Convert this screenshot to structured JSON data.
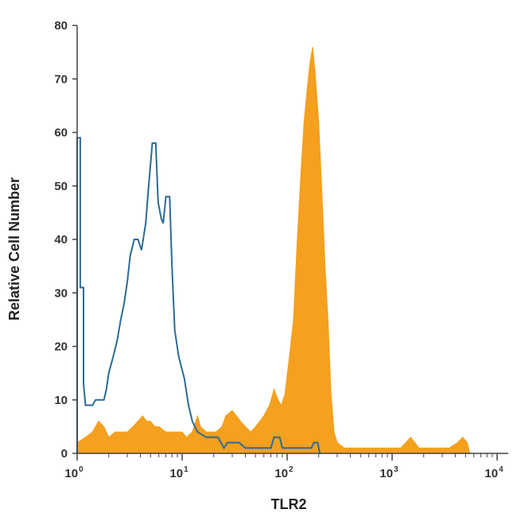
{
  "chart_data": {
    "type": "area",
    "xlabel": "TLR2",
    "ylabel": "Relative Cell Number",
    "x_scale": "log",
    "xlim": [
      1,
      10000
    ],
    "ylim": [
      0,
      80
    ],
    "x_ticks": [
      {
        "value": 1,
        "base": "10",
        "exp": "0"
      },
      {
        "value": 10,
        "base": "10",
        "exp": "1"
      },
      {
        "value": 100,
        "base": "10",
        "exp": "2"
      },
      {
        "value": 1000,
        "base": "10",
        "exp": "3"
      },
      {
        "value": 10000,
        "base": "10",
        "exp": "4"
      }
    ],
    "y_ticks": [
      0,
      10,
      20,
      30,
      40,
      50,
      60,
      70,
      80
    ],
    "grid": false,
    "series": [
      {
        "style": "filled",
        "color": "#F5A01E",
        "points": [
          [
            1.0,
            2
          ],
          [
            1.2,
            3
          ],
          [
            1.4,
            4
          ],
          [
            1.6,
            6
          ],
          [
            1.8,
            5
          ],
          [
            2.0,
            3
          ],
          [
            2.3,
            4
          ],
          [
            2.6,
            4
          ],
          [
            3.0,
            4
          ],
          [
            3.4,
            5
          ],
          [
            3.8,
            6
          ],
          [
            4.2,
            7
          ],
          [
            4.6,
            6
          ],
          [
            5.0,
            6
          ],
          [
            5.5,
            5
          ],
          [
            6.0,
            5
          ],
          [
            7.0,
            4
          ],
          [
            8.0,
            4
          ],
          [
            9.0,
            4
          ],
          [
            10.0,
            4
          ],
          [
            11.0,
            3
          ],
          [
            12.5,
            4
          ],
          [
            14.0,
            7
          ],
          [
            15.0,
            5
          ],
          [
            17.0,
            4
          ],
          [
            19.0,
            4
          ],
          [
            21.0,
            4
          ],
          [
            24.0,
            5
          ],
          [
            26.0,
            7
          ],
          [
            30.0,
            8
          ],
          [
            33.0,
            7
          ],
          [
            36.0,
            6
          ],
          [
            40.0,
            5
          ],
          [
            45.0,
            4
          ],
          [
            50.0,
            5
          ],
          [
            55.0,
            6
          ],
          [
            60.0,
            7
          ],
          [
            68.0,
            9
          ],
          [
            75.0,
            12
          ],
          [
            82.0,
            10
          ],
          [
            88.0,
            9
          ],
          [
            95.0,
            11
          ],
          [
            105.0,
            18
          ],
          [
            115.0,
            25
          ],
          [
            125.0,
            40
          ],
          [
            135.0,
            52
          ],
          [
            145.0,
            62
          ],
          [
            155.0,
            68
          ],
          [
            165.0,
            73
          ],
          [
            175.0,
            76
          ],
          [
            185.0,
            71
          ],
          [
            200.0,
            62
          ],
          [
            215.0,
            48
          ],
          [
            230.0,
            35
          ],
          [
            245.0,
            25
          ],
          [
            260.0,
            12
          ],
          [
            280.0,
            4
          ],
          [
            300.0,
            2
          ],
          [
            350.0,
            1
          ],
          [
            450.0,
            1
          ],
          [
            600.0,
            1
          ],
          [
            800.0,
            1
          ],
          [
            1000.0,
            1
          ],
          [
            1200.0,
            1
          ],
          [
            1350.0,
            2
          ],
          [
            1500.0,
            3
          ],
          [
            1650.0,
            2
          ],
          [
            1800.0,
            1
          ],
          [
            2500.0,
            1
          ],
          [
            3500.0,
            1
          ],
          [
            4200.0,
            2
          ],
          [
            4700.0,
            3
          ],
          [
            5200.0,
            2
          ],
          [
            5500.0,
            0
          ]
        ]
      },
      {
        "style": "outline",
        "color": "#2B6B96",
        "points": [
          [
            1.0,
            0
          ],
          [
            1.0,
            59
          ],
          [
            1.07,
            59
          ],
          [
            1.07,
            31
          ],
          [
            1.15,
            31
          ],
          [
            1.15,
            13
          ],
          [
            1.2,
            9
          ],
          [
            1.4,
            9
          ],
          [
            1.5,
            10
          ],
          [
            1.8,
            10
          ],
          [
            1.9,
            12
          ],
          [
            2.0,
            15
          ],
          [
            2.2,
            18
          ],
          [
            2.4,
            21
          ],
          [
            2.6,
            25
          ],
          [
            2.8,
            28
          ],
          [
            3.0,
            32
          ],
          [
            3.2,
            37
          ],
          [
            3.5,
            40
          ],
          [
            3.8,
            40
          ],
          [
            4.1,
            38
          ],
          [
            4.5,
            43
          ],
          [
            4.8,
            50
          ],
          [
            5.2,
            58
          ],
          [
            5.6,
            58
          ],
          [
            5.9,
            47
          ],
          [
            6.3,
            44
          ],
          [
            6.6,
            43
          ],
          [
            7.0,
            48
          ],
          [
            7.6,
            48
          ],
          [
            8.0,
            35
          ],
          [
            8.5,
            23
          ],
          [
            9.3,
            18
          ],
          [
            10.5,
            14
          ],
          [
            11.5,
            9
          ],
          [
            12.5,
            6
          ],
          [
            14.0,
            4
          ],
          [
            17.0,
            3
          ],
          [
            22.0,
            3
          ],
          [
            25.0,
            1
          ],
          [
            27.0,
            2
          ],
          [
            35.0,
            2
          ],
          [
            40.0,
            1
          ],
          [
            50.0,
            1
          ],
          [
            70.0,
            1
          ],
          [
            75.0,
            3
          ],
          [
            85.0,
            3
          ],
          [
            90.0,
            1
          ],
          [
            120.0,
            1
          ],
          [
            170.0,
            1
          ],
          [
            180.0,
            2
          ],
          [
            195.0,
            2
          ],
          [
            205.0,
            0
          ]
        ]
      }
    ]
  }
}
